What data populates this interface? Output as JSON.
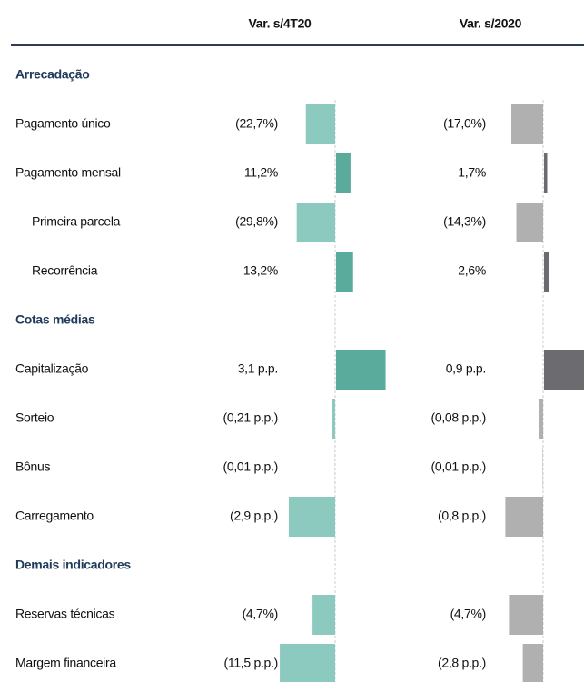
{
  "header": {
    "columns": [
      "Var. s/4T20",
      "Var. s/2020"
    ]
  },
  "sections": [
    {
      "title": "Arrecadação",
      "rows": [
        {
          "label": "Pagamento único",
          "values": [
            -22.7,
            -17.0
          ],
          "value_labels": [
            "(22,7%)",
            "(17,0%)"
          ]
        },
        {
          "label": "Pagamento mensal",
          "values": [
            11.2,
            1.7
          ],
          "value_labels": [
            "11,2%",
            "1,7%"
          ]
        },
        {
          "label": "Primeira parcela",
          "values": [
            -29.8,
            -14.3
          ],
          "value_labels": [
            "(29,8%)",
            "(14,3%)"
          ]
        },
        {
          "label": "Recorrência",
          "values": [
            13.2,
            2.6
          ],
          "value_labels": [
            "13,2%",
            "2,6%"
          ]
        }
      ]
    },
    {
      "title": "Cotas médias",
      "rows": [
        {
          "label": "Capitalização",
          "values": [
            3.1,
            0.9
          ],
          "value_labels": [
            "3,1 p.p.",
            "0,9 p.p."
          ]
        },
        {
          "label": "Sorteio",
          "values": [
            -0.21,
            -0.08
          ],
          "value_labels": [
            "(0,21 p.p.)",
            "(0,08 p.p.)"
          ]
        },
        {
          "label": "Bônus",
          "values": [
            -0.01,
            -0.01
          ],
          "value_labels": [
            "(0,01 p.p.)",
            "(0,01 p.p.)"
          ]
        },
        {
          "label": "Carregamento",
          "values": [
            -2.9,
            -0.8
          ],
          "value_labels": [
            "(2,9 p.p.)",
            "(0,8 p.p.)"
          ]
        }
      ]
    },
    {
      "title": "Demais indicadores",
      "rows": [
        {
          "label": "Reservas técnicas",
          "values": [
            -4.7,
            -4.7
          ],
          "value_labels": [
            "(4,7%)",
            "(4,7%)"
          ]
        },
        {
          "label": "Margem financeira",
          "values": [
            -11.5,
            -2.8
          ],
          "value_labels": [
            "(11,5 p.p.)",
            "(2,8 p.p.)"
          ]
        }
      ]
    }
  ]
}
